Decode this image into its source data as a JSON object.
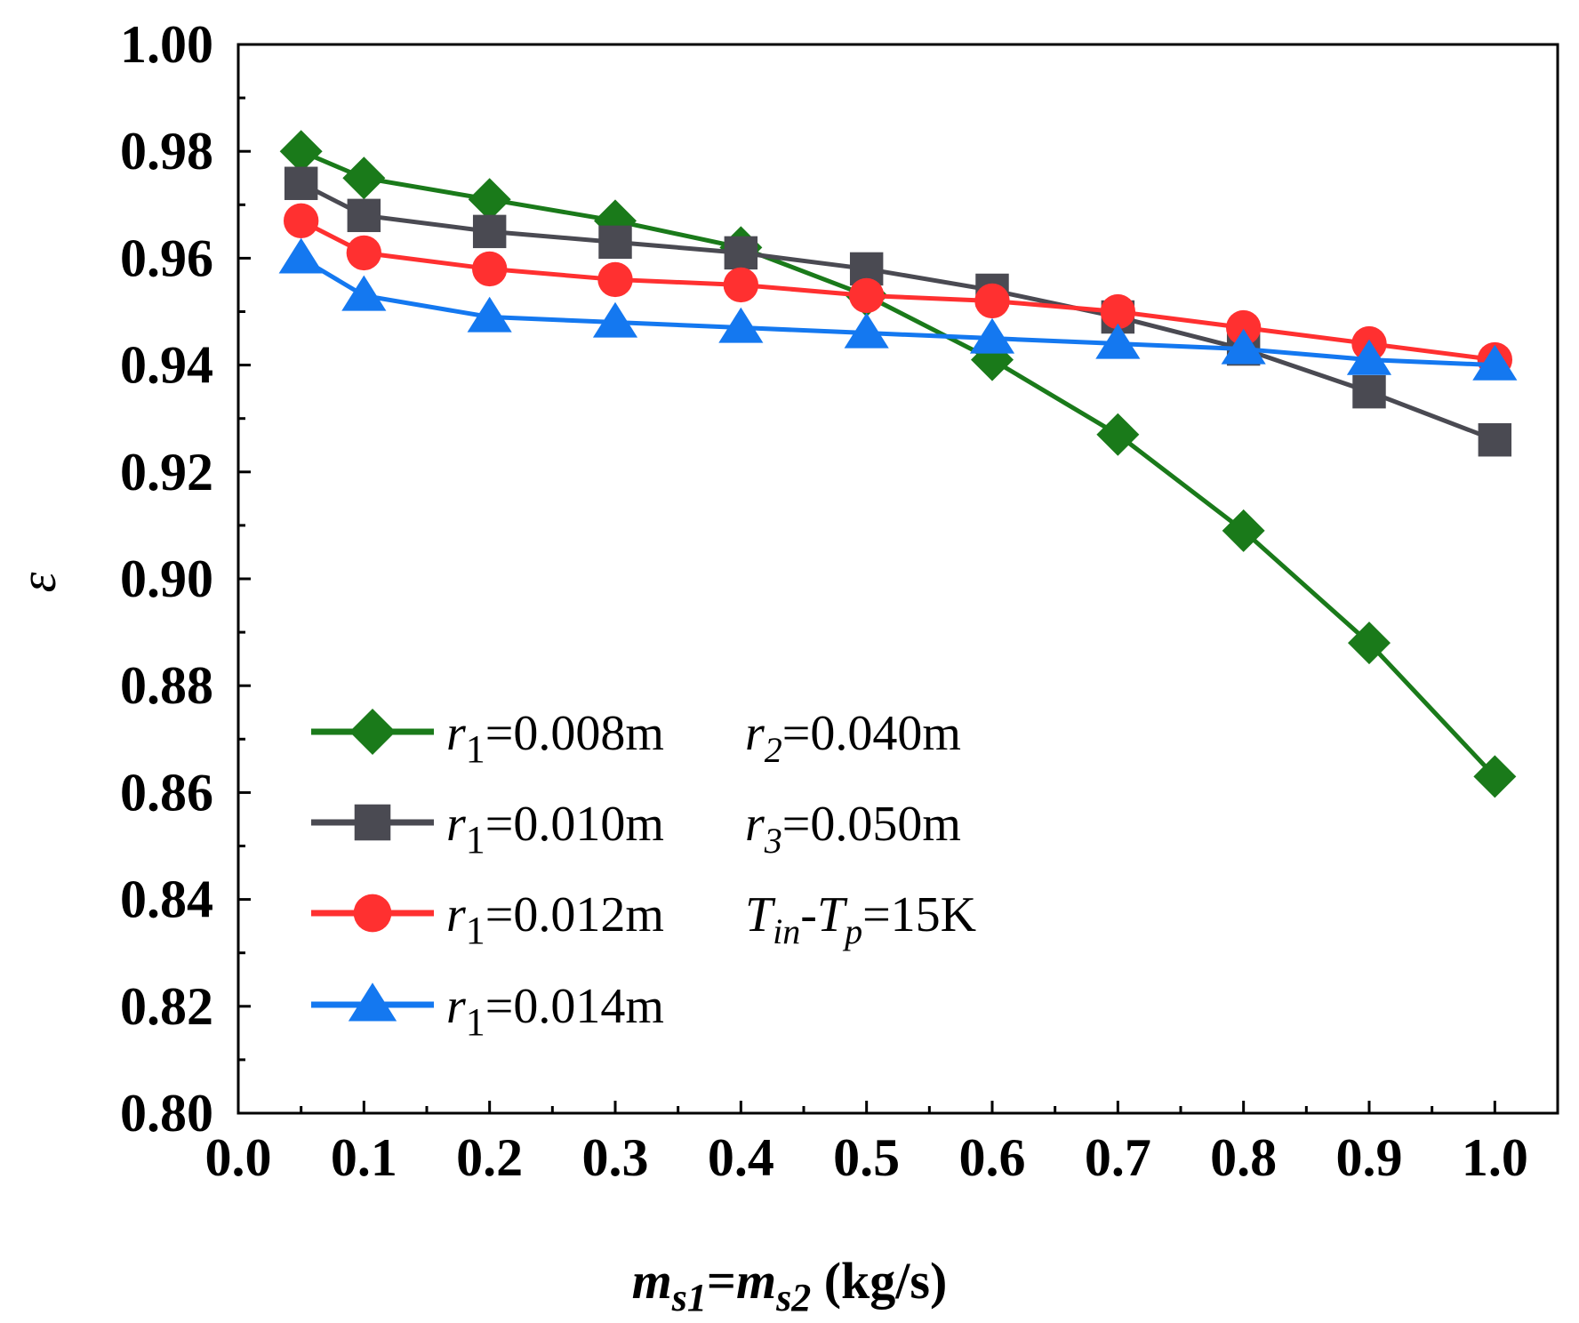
{
  "chart_data": {
    "type": "line",
    "title": "",
    "xlabel": {
      "base": "m",
      "sub1": "s1",
      "eq": "=",
      "base2": "m",
      "sub2": "s2",
      "unit": " (kg/s)"
    },
    "ylabel": "ε",
    "xlim": [
      0.0,
      1.05
    ],
    "ylim": [
      0.8,
      1.0
    ],
    "xticks": [
      0.0,
      0.1,
      0.2,
      0.3,
      0.4,
      0.5,
      0.6,
      0.7,
      0.8,
      0.9,
      1.0
    ],
    "xtick_labels": [
      "0.0",
      "0.1",
      "0.2",
      "0.3",
      "0.4",
      "0.5",
      "0.6",
      "0.7",
      "0.8",
      "0.9",
      "1.0"
    ],
    "yticks": [
      0.8,
      0.82,
      0.84,
      0.86,
      0.88,
      0.9,
      0.92,
      0.94,
      0.96,
      0.98,
      1.0
    ],
    "ytick_labels": [
      "0.80",
      "0.82",
      "0.84",
      "0.86",
      "0.88",
      "0.90",
      "0.92",
      "0.94",
      "0.96",
      "0.98",
      "1.00"
    ],
    "grid": false,
    "legend_position": "bottom-left",
    "x": [
      0.05,
      0.1,
      0.2,
      0.3,
      0.4,
      0.5,
      0.6,
      0.7,
      0.8,
      0.9,
      1.0
    ],
    "series": [
      {
        "name": "r1=0.008m",
        "color": "#1a7a1a",
        "marker": "diamond",
        "values": [
          0.98,
          0.975,
          0.971,
          0.967,
          0.962,
          0.953,
          0.941,
          0.927,
          0.909,
          0.888,
          0.863
        ]
      },
      {
        "name": "r1=0.010m",
        "color": "#4a4a52",
        "marker": "square",
        "values": [
          0.974,
          0.968,
          0.965,
          0.963,
          0.961,
          0.958,
          0.954,
          0.949,
          0.943,
          0.935,
          0.926
        ]
      },
      {
        "name": "r1=0.012m",
        "color": "#ff3030",
        "marker": "circle",
        "values": [
          0.967,
          0.961,
          0.958,
          0.956,
          0.955,
          0.953,
          0.952,
          0.95,
          0.947,
          0.944,
          0.941
        ]
      },
      {
        "name": "r1=0.014m",
        "color": "#1478f0",
        "marker": "triangle",
        "values": [
          0.96,
          0.953,
          0.949,
          0.948,
          0.947,
          0.946,
          0.945,
          0.944,
          0.943,
          0.941,
          0.94
        ]
      }
    ],
    "legend": [
      {
        "var": "r",
        "sub": "1",
        "value": "=0.008m",
        "note": {
          "var": "r",
          "sub": "2",
          "value": "=0.040m"
        }
      },
      {
        "var": "r",
        "sub": "1",
        "value": "=0.010m",
        "note": {
          "var": "r",
          "sub": "3",
          "value": "=0.050m"
        }
      },
      {
        "var": "r",
        "sub": "1",
        "value": "=0.012m",
        "note": {
          "var": "T",
          "sub": "in",
          "mid": "-",
          "var2": "T",
          "sub2": "p",
          "value": "=15K"
        }
      },
      {
        "var": "r",
        "sub": "1",
        "value": "=0.014m",
        "note": null
      }
    ]
  }
}
